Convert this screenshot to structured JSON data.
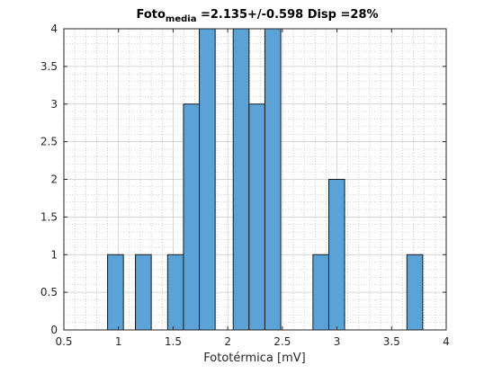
{
  "chart_data": {
    "type": "bar",
    "title": {
      "main": "Foto",
      "subscript": "media",
      "rest": " =2.135+/-0.598 Disp =28%"
    },
    "xlabel": "Fototérmica [mV]",
    "ylabel": "",
    "xlim": [
      0.5,
      4
    ],
    "ylim": [
      0,
      4
    ],
    "xticks": [
      0.5,
      1,
      1.5,
      2,
      2.5,
      3,
      3.5,
      4
    ],
    "xtick_labels": [
      "0.5",
      "1",
      "1.5",
      "2",
      "2.5",
      "3",
      "3.5",
      "4"
    ],
    "yticks": [
      0,
      0.5,
      1,
      1.5,
      2,
      2.5,
      3,
      3.5,
      4
    ],
    "ytick_labels": [
      "0",
      "0.5",
      "1",
      "1.5",
      "2",
      "2.5",
      "3",
      "3.5",
      "4"
    ],
    "grid": true,
    "minor_grid": true,
    "bin_width": 0.145,
    "bins": [
      {
        "x0": 0.9,
        "x1": 1.045,
        "count": 1
      },
      {
        "x0": 1.155,
        "x1": 1.3,
        "count": 1
      },
      {
        "x0": 1.45,
        "x1": 1.595,
        "count": 1
      },
      {
        "x0": 1.595,
        "x1": 1.74,
        "count": 3
      },
      {
        "x0": 1.74,
        "x1": 1.885,
        "count": 4
      },
      {
        "x0": 2.05,
        "x1": 2.195,
        "count": 4
      },
      {
        "x0": 2.195,
        "x1": 2.34,
        "count": 3
      },
      {
        "x0": 2.34,
        "x1": 2.485,
        "count": 4
      },
      {
        "x0": 2.78,
        "x1": 2.925,
        "count": 1
      },
      {
        "x0": 2.925,
        "x1": 3.07,
        "count": 2
      },
      {
        "x0": 3.64,
        "x1": 3.785,
        "count": 1
      }
    ],
    "colors": {
      "bar_fill": "#5ba3d6",
      "bar_edge": "#1a1a1a",
      "axis": "#262626",
      "grid": "#c8c8c8"
    }
  }
}
